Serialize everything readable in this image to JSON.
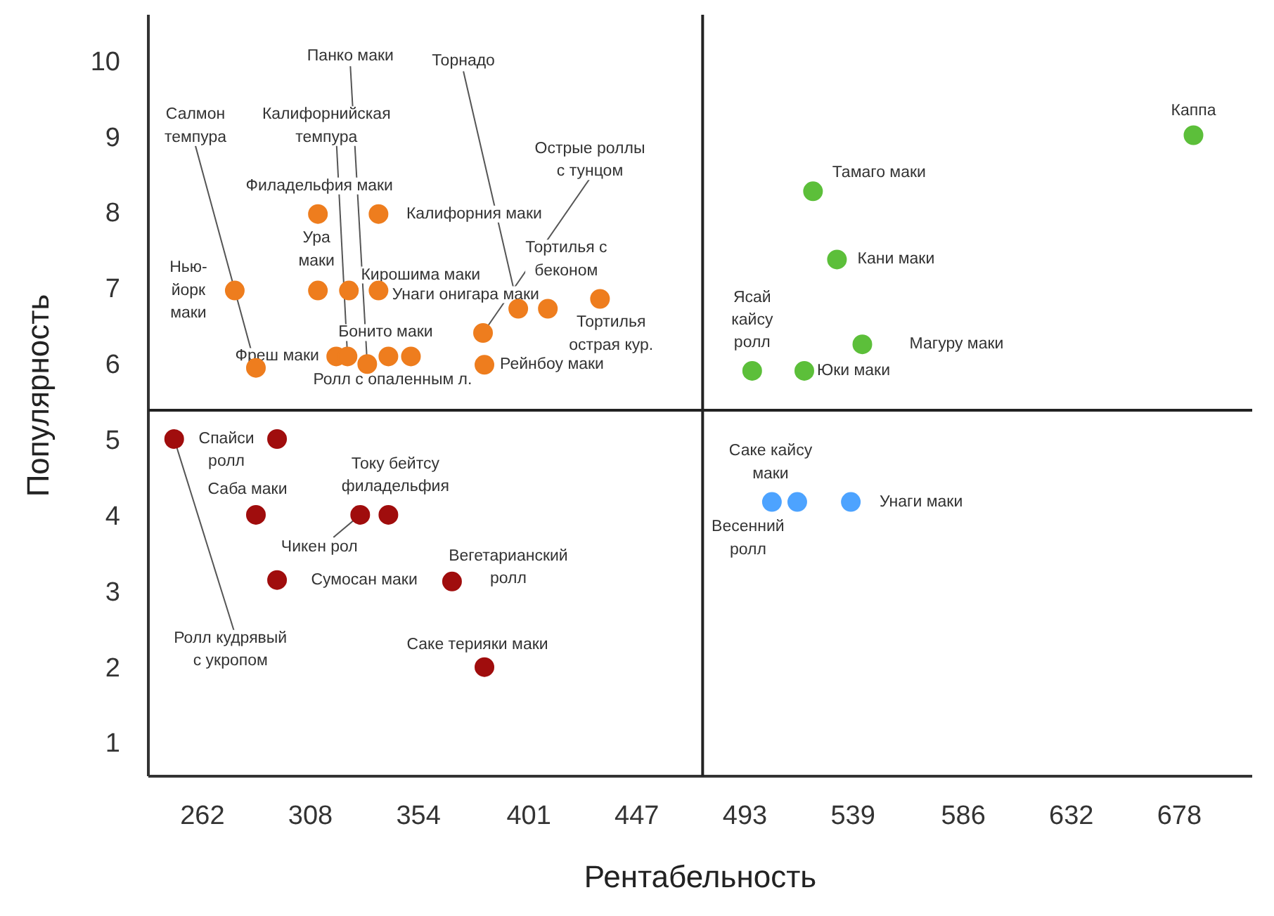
{
  "chart_data": {
    "type": "scatter",
    "xlabel": "Рентабельность",
    "ylabel": "Популярность",
    "xlim": [
      239,
      709
    ],
    "ylim": [
      0.55,
      10.6
    ],
    "xticks": [
      262,
      308,
      354,
      401,
      447,
      493,
      539,
      586,
      632,
      678
    ],
    "yticks": [
      1,
      2,
      3,
      4,
      5,
      6,
      7,
      8,
      9,
      10
    ],
    "grid": false,
    "marker": "circle",
    "ref_lines": [
      {
        "axis": "x",
        "value": 475,
        "color": "#222222"
      },
      {
        "axis": "y",
        "value": 5.38,
        "color": "#222222"
      }
    ],
    "series": [
      {
        "color": "#ee7d1e",
        "x": [
          275.8,
          284.8,
          311.2,
          337.0,
          311.2,
          324.4,
          337.0,
          319.0,
          323.8,
          332.2,
          341.2,
          350.8,
          382.1,
          396.5,
          381.5,
          409.1,
          431.3
        ],
        "values": [
          6.96,
          5.94,
          7.97,
          7.97,
          6.96,
          6.96,
          6.96,
          6.09,
          6.09,
          5.99,
          6.09,
          6.09,
          5.98,
          6.72,
          6.4,
          6.72,
          6.85
        ]
      },
      {
        "color": "#a00d0d",
        "x": [
          250.0,
          293.8,
          284.8,
          329.2,
          341.2,
          293.8,
          368.3,
          382.1
        ],
        "values": [
          5.0,
          5.0,
          4.0,
          4.0,
          4.0,
          3.14,
          3.12,
          1.99
        ]
      },
      {
        "color": "#5cbf3a",
        "x": [
          684.0,
          522.0,
          532.2,
          543.0,
          496.1,
          518.3
        ],
        "values": [
          9.01,
          8.27,
          7.37,
          6.25,
          5.9,
          5.9
        ]
      },
      {
        "color": "#4da3ff",
        "x": [
          504.5,
          515.3,
          538.1
        ],
        "values": [
          4.17,
          4.17,
          4.17
        ]
      }
    ],
    "annotations": [
      {
        "text": "Нью-\nйорк\nмаки",
        "x": 275.8,
        "y": 6.96
      },
      {
        "text": "Салмон\nтемпура",
        "x": 284.8,
        "y": 5.94
      },
      {
        "text": "Филадельфия маки",
        "x": 311.2,
        "y": 7.97
      },
      {
        "text": "Калифорния маки",
        "x": 337.0,
        "y": 7.97
      },
      {
        "text": "Ура\nмаки",
        "x": 311.2,
        "y": 6.96
      },
      {
        "text": "Кирошима маки",
        "x": 324.4,
        "y": 6.96
      },
      {
        "text": "Унаги онигара маки",
        "x": 337.0,
        "y": 6.96
      },
      {
        "text": "Фреш маки",
        "x": 319.0,
        "y": 6.09
      },
      {
        "text": "Калифорнийская\nтемпура",
        "x": 323.8,
        "y": 6.09
      },
      {
        "text": "Панко маки",
        "x": 332.2,
        "y": 5.99
      },
      {
        "text": "Бонито маки",
        "x": 341.2,
        "y": 6.09
      },
      {
        "text": "Ролл с опаленным л.",
        "x": 350.8,
        "y": 6.09
      },
      {
        "text": "Рейнбоу маки",
        "x": 382.1,
        "y": 5.98
      },
      {
        "text": "Торнадо",
        "x": 396.5,
        "y": 6.72
      },
      {
        "text": "Острые роллы\nс тунцом",
        "x": 381.5,
        "y": 6.4
      },
      {
        "text": "Тортилья\nострая кур.",
        "x": 409.1,
        "y": 6.72
      },
      {
        "text": "Тортилья с\nбеконом",
        "x": 431.3,
        "y": 6.85
      },
      {
        "text": "Ролл кудрявый\nс укропом",
        "x": 250.0,
        "y": 5.0
      },
      {
        "text": "Спайси\nролл",
        "x": 293.8,
        "y": 5.0
      },
      {
        "text": "Саба маки",
        "x": 284.8,
        "y": 4.0
      },
      {
        "text": "Чикен рол",
        "x": 329.2,
        "y": 4.0
      },
      {
        "text": "Току бейтсу\nфиладельфия",
        "x": 341.2,
        "y": 4.0
      },
      {
        "text": "Сумосан маки",
        "x": 293.8,
        "y": 3.14
      },
      {
        "text": "Вегетарианский\nролл",
        "x": 368.3,
        "y": 3.12
      },
      {
        "text": "Саке терияки маки",
        "x": 382.1,
        "y": 1.99
      },
      {
        "text": "Каппа",
        "x": 684.0,
        "y": 9.01
      },
      {
        "text": "Тамаго маки",
        "x": 522.0,
        "y": 8.27
      },
      {
        "text": "Кани маки",
        "x": 532.2,
        "y": 7.37
      },
      {
        "text": "Магуру маки",
        "x": 543.0,
        "y": 6.25
      },
      {
        "text": "Ясай\nкайсу\nролл",
        "x": 496.1,
        "y": 5.9
      },
      {
        "text": "Юки маки",
        "x": 518.3,
        "y": 5.9
      },
      {
        "text": "Весенний\nролл",
        "x": 504.5,
        "y": 4.17
      },
      {
        "text": "Саке кайсу\nмаки",
        "x": 515.3,
        "y": 4.17
      },
      {
        "text": "Унаги маки",
        "x": 538.1,
        "y": 4.17
      }
    ]
  }
}
